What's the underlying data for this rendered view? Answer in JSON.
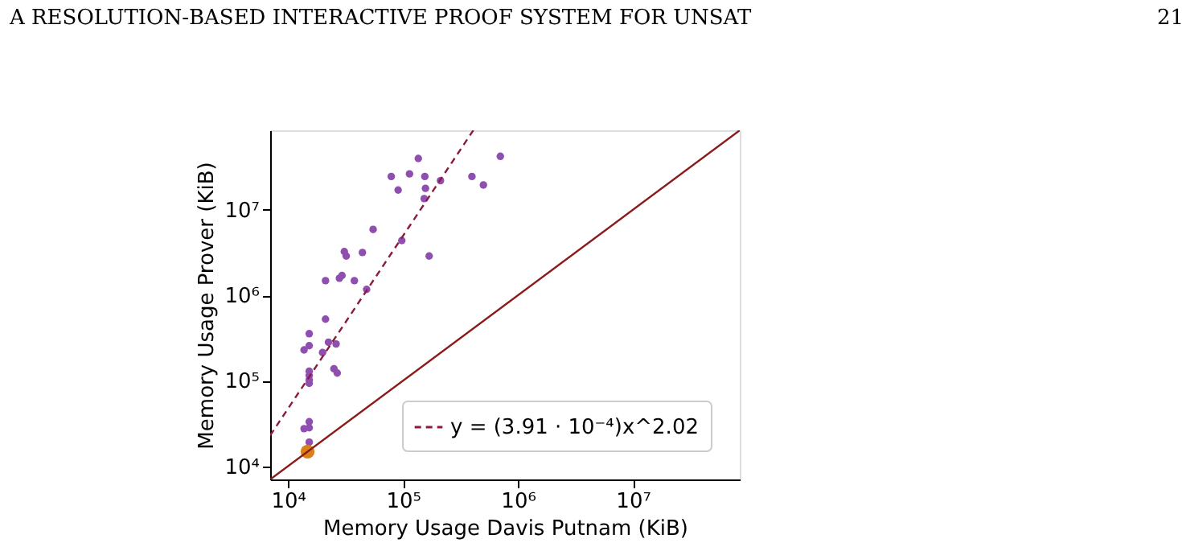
{
  "chart_data": {
    "type": "scatter",
    "xlabel": "Memory Usage Davis Putnam (KiB)",
    "ylabel": "Memory Usage Prover (KiB)",
    "annotations": [
      "A RESOLUTION-BASED INTERACTIVE PROOF SYSTEM FOR UNSAT",
      "21"
    ],
    "log": "xy",
    "grid": false,
    "legend": "bottom right",
    "xlim": [
      7000,
      85000000
    ],
    "ylim": [
      7000,
      85000000
    ],
    "xticks": [
      {
        "value": 10000,
        "label": "10⁴"
      },
      {
        "value": 100000,
        "label": "10⁵"
      },
      {
        "value": 1000000,
        "label": "10⁶"
      },
      {
        "value": 10000000,
        "label": "10⁷"
      }
    ],
    "yticks": [
      {
        "value": 10000,
        "label": "10⁴"
      },
      {
        "value": 100000,
        "label": "10⁵"
      },
      {
        "value": 1000000,
        "label": "10⁶"
      },
      {
        "value": 10000000,
        "label": "10⁷"
      }
    ],
    "series": [
      {
        "marker": "circle",
        "color": "#8e4fae",
        "x": [
          136000,
          703000,
          79100,
          114000,
          155000,
          398000,
          501000,
          212000,
          90800,
          157000,
          153000,
          55000,
          97700,
          30900,
          32100,
          44400,
          169000,
          21200,
          28000,
          29500,
          37800,
          48300,
          21200,
          15300,
          15300,
          13800,
          22500,
          26200,
          20000,
          25100,
          26800,
          15300,
          15300,
          15300,
          15300,
          15300,
          15300,
          13800,
          15300
        ],
        "values": [
          39800000,
          42200000,
          24500000,
          26300000,
          24500000,
          24500000,
          19500000,
          21900000,
          17000000,
          17800000,
          13500000,
          5890000,
          4370000,
          3240000,
          2880000,
          3160000,
          2880000,
          1480000,
          1580000,
          1700000,
          1480000,
          1170000,
          525000,
          355000,
          257000,
          229000,
          282000,
          269000,
          214000,
          138000,
          123000,
          129000,
          115000,
          102000,
          93300,
          33100,
          28200,
          27500,
          19100
        ]
      },
      {
        "marker": "circle",
        "color": "#d9801a",
        "x": [
          14800
        ],
        "values": [
          14800
        ]
      },
      {
        "type": "line",
        "name": "y = (3.91 · 10⁻⁴)x^2.02",
        "color": "#8b1a3c",
        "line_style": "dashed",
        "x": [
          7000,
          409000
        ],
        "values": [
          22900,
          85000000
        ]
      },
      {
        "type": "line",
        "color": "#8b1a1a",
        "line_style": "solid",
        "x": [
          7000,
          85000000
        ],
        "values": [
          7000,
          85000000
        ]
      }
    ]
  }
}
